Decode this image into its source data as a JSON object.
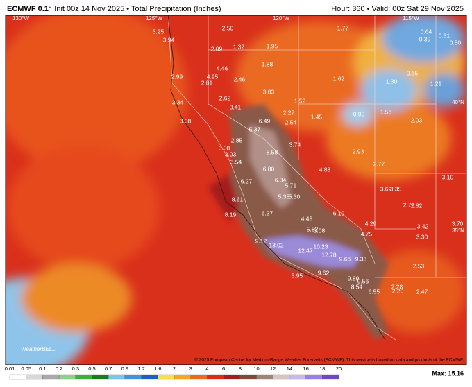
{
  "header": {
    "model": "ECMWF 0.1°",
    "info": "Init 00z 14 Nov 2025 • Total Precipitation (Inches)",
    "hour": "Hour: 360 • Valid: 00z Sat 29 Nov 2025"
  },
  "grid_labels": [
    "130°W",
    "125°W",
    "120°W",
    "115°W",
    "40°N",
    "35°N"
  ],
  "points": [
    "3.25",
    "3.94",
    "2.50",
    "1.77",
    "2.09",
    "1.32",
    "1.95",
    "0.64",
    "0.31",
    "0.39",
    "0.50",
    "4.46",
    "1.88",
    "4.95",
    "2.99",
    "2.81",
    "2.46",
    "1.62",
    "0.65",
    "1.30",
    "1.21",
    "3.03",
    "2.62",
    "1.52",
    "3.34",
    "3.41",
    "2.27",
    "0.90",
    "1.56",
    "1.45",
    "3.08",
    "6.49",
    "2.54",
    "2.03",
    "5.37",
    "2.85",
    "3.74",
    "8.58",
    "2.93",
    "3.08",
    "3.03",
    "3.54",
    "2.77",
    "6.80",
    "4.88",
    "6.27",
    "6.34",
    "5.71",
    "3.10",
    "3.69",
    "3.35",
    "8.61",
    "5.35",
    "5.30",
    "2.72",
    "2.82",
    "8.19",
    "6.37",
    "6.19",
    "4.45",
    "4.29",
    "3.42",
    "3.70",
    "5.82",
    "3.08",
    "4.75",
    "3.30",
    "9.12",
    "13.02",
    "10.23",
    "12.47",
    "12.78",
    "9.66",
    "9.33",
    "2.53",
    "9.62",
    "5.95",
    "9.89",
    "9.56",
    "8.54",
    "2.28",
    "2.20",
    "6.55",
    "2.47"
  ],
  "watermark": "WeatherBELL",
  "copyright": "© 2025 European Centre for Medium-Range Weather Forecasts (ECMWF). This service is based on data and products of the ECMWF.",
  "colorbar": {
    "ticks": [
      "0.01",
      "0.05",
      "0.1",
      "0.2",
      "0.3",
      "0.5",
      "0.7",
      "0.9",
      "1.2",
      "1.6",
      "2",
      "3",
      "4",
      "6",
      "8",
      "10",
      "12",
      "14",
      "16",
      "18",
      "20"
    ],
    "colors": [
      "#ffffff",
      "#d8d8d8",
      "#a9a9a9",
      "#8fd18a",
      "#3fae3c",
      "#1d7a1d",
      "#7fc4e8",
      "#4a90d9",
      "#1f5fbf",
      "#f5e04a",
      "#f5a623",
      "#ee6a1a",
      "#dd2a1a",
      "#a61c1c",
      "#7a4a3a",
      "#a08478",
      "#d8c4c0",
      "#c8b8ec",
      "#9a7ee0",
      "#6e48c8"
    ],
    "max": "Max: 15.16"
  }
}
